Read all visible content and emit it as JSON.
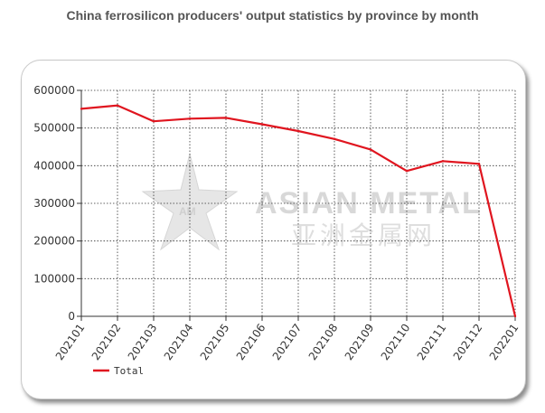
{
  "page": {
    "title": "China ferrosilicon producers' output statistics by province by month"
  },
  "watermark": {
    "text": "ASIAN METAL",
    "text_cn": "亚洲金属网",
    "mark": "AM",
    "icon": "star-logo-icon"
  },
  "colors": {
    "series": "#e0151f",
    "grid": "#333333",
    "title": "#555555"
  },
  "chart_data": {
    "type": "line",
    "title": "China ferrosilicon producers' output statistics by province by month",
    "xlabel": "",
    "ylabel": "",
    "categories": [
      "202101",
      "202102",
      "202103",
      "202104",
      "202105",
      "202106",
      "202107",
      "202108",
      "202109",
      "202110",
      "202111",
      "202112",
      "202201"
    ],
    "series": [
      {
        "name": "Total",
        "color": "#e0151f",
        "values": [
          551000,
          560000,
          518000,
          525000,
          527000,
          510000,
          492000,
          471000,
          443000,
          386000,
          412000,
          405000,
          0
        ]
      }
    ],
    "ylim": [
      0,
      600000
    ],
    "yticks": [
      "0",
      "100000",
      "200000",
      "300000",
      "400000",
      "500000",
      "600000"
    ],
    "grid": true,
    "legend": "bottom-left"
  }
}
